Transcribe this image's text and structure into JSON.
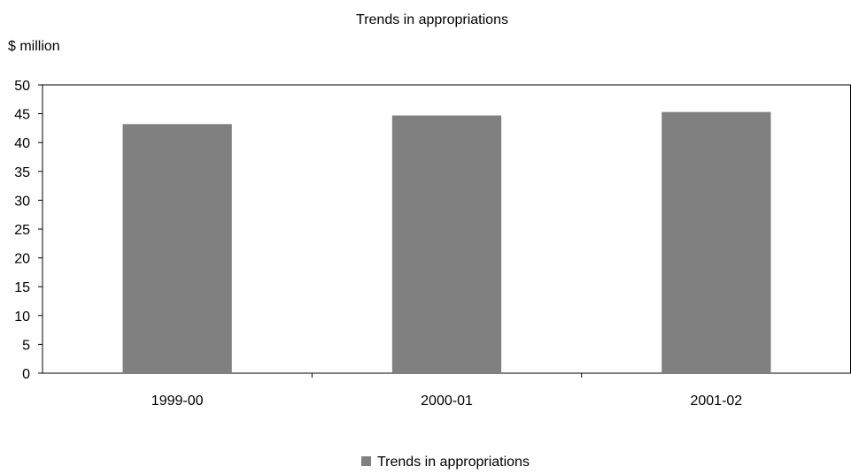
{
  "chart_data": {
    "type": "bar",
    "title": "Trends in appropriations",
    "ylabel": "$ million",
    "xlabel": "",
    "categories": [
      "1999-00",
      "2000-01",
      "2001-02"
    ],
    "series": [
      {
        "name": "Trends in appropriations",
        "values": [
          43.2,
          44.7,
          45.3
        ]
      }
    ],
    "ylim": [
      0,
      50
    ],
    "yticks": [
      "0",
      "5",
      "10",
      "15",
      "20",
      "25",
      "30",
      "35",
      "40",
      "45",
      "50"
    ],
    "grid": false,
    "legend_position": "bottom",
    "colors": {
      "bar": "#808080",
      "axis": "#000000"
    }
  }
}
